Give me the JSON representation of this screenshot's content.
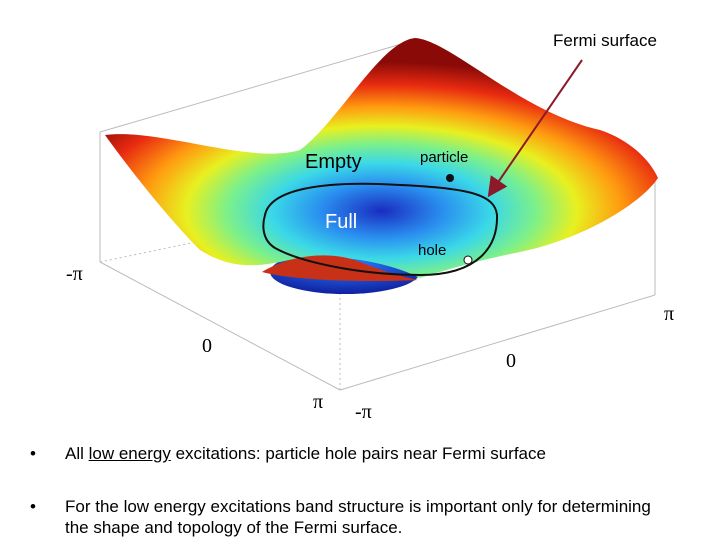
{
  "figure": {
    "annotation": "Fermi surface",
    "region_outer": "Empty",
    "region_inner": "Full",
    "particle": "particle",
    "hole": "hole",
    "axis_labels": [
      "-π",
      "π",
      "0",
      "0",
      "π",
      "-π"
    ]
  },
  "bullets": [
    {
      "before": "All ",
      "underlined": "low energy",
      "after": " excitations: particle hole pairs near Fermi surface"
    },
    {
      "text": "For the low energy excitations band structure is important only for determining the shape and topology of the Fermi surface."
    }
  ]
}
